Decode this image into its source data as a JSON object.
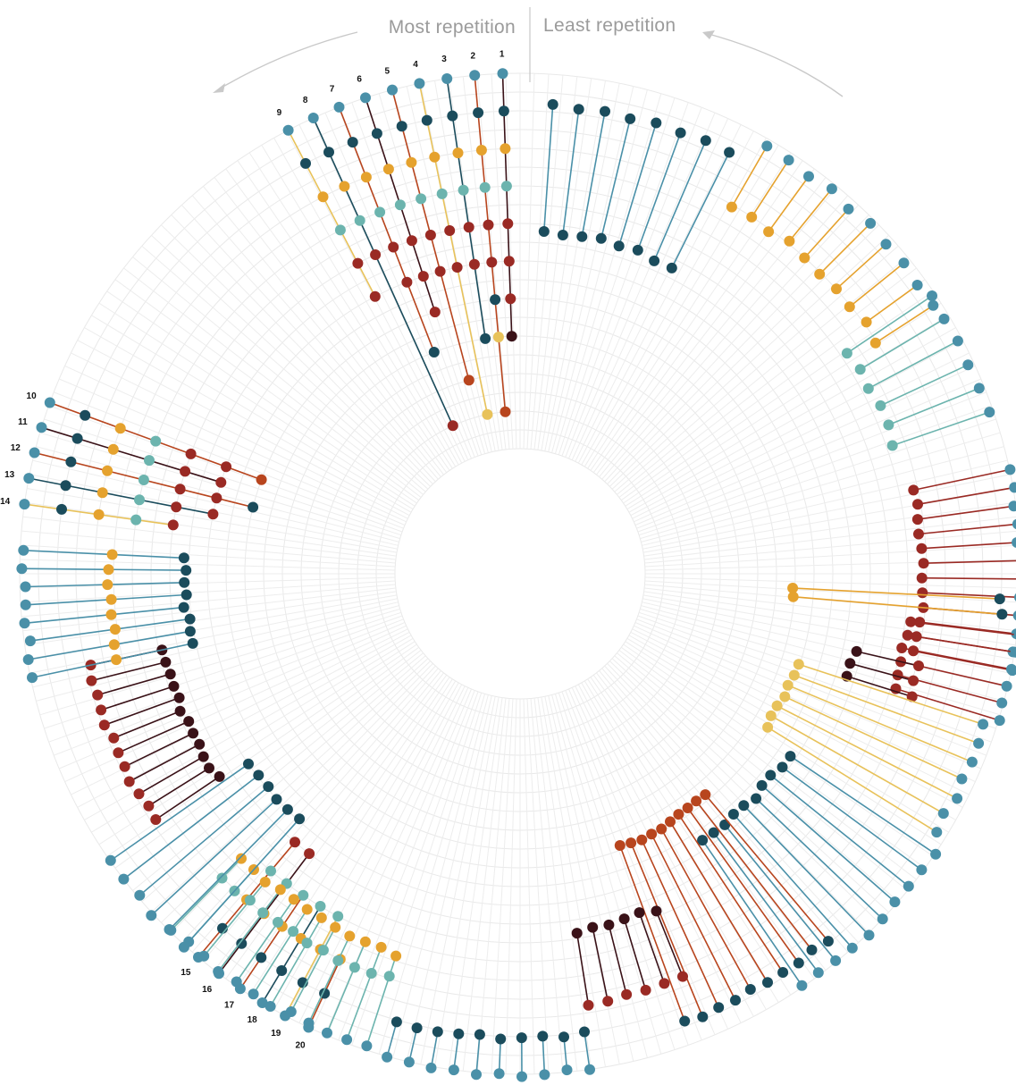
{
  "header": {
    "left_label": "Most repetition",
    "right_label": "Least repetition"
  },
  "colors": {
    "teal": "#4a90a8",
    "dark_teal": "#1b4c5c",
    "mint": "#6cb4ae",
    "orange": "#e5a22e",
    "yellow": "#e8c25a",
    "red": "#9a2a24",
    "burnt_orange": "#b8451e",
    "dark_red": "#3a1218",
    "grid": "#e9e9e9"
  },
  "chart_data": {
    "type": "radial-dot",
    "rank_labels": [
      "1",
      "2",
      "3",
      "4",
      "5",
      "6",
      "7",
      "8",
      "9",
      "10",
      "11",
      "12",
      "13",
      "14",
      "15",
      "16",
      "17",
      "18",
      "19",
      "20"
    ],
    "series": [
      {
        "rank": 1,
        "dots": [
          10,
          9,
          8,
          7,
          6,
          5,
          4,
          3
        ]
      },
      {
        "rank": 2,
        "dots": [
          10,
          9,
          8,
          7,
          6,
          5,
          4,
          3,
          1
        ]
      },
      {
        "rank": 3,
        "dots": [
          10,
          9,
          8,
          7,
          6,
          5,
          3
        ]
      },
      {
        "rank": 4,
        "dots": [
          10,
          9,
          8,
          7,
          6,
          5,
          1
        ]
      },
      {
        "rank": 5,
        "dots": [
          10,
          9,
          8,
          7,
          6,
          5,
          2
        ]
      },
      {
        "rank": 6,
        "dots": [
          10,
          9,
          8,
          7,
          6,
          5,
          4
        ]
      },
      {
        "rank": 7,
        "dots": [
          10,
          9,
          8,
          7,
          6,
          5,
          3
        ]
      },
      {
        "rank": 8,
        "dots": [
          10,
          9,
          8,
          7,
          6,
          1
        ]
      },
      {
        "rank": 9,
        "dots": [
          10,
          9,
          8,
          7,
          6,
          5
        ]
      },
      {
        "rank": 10,
        "dots": [
          10,
          9,
          8,
          7,
          6,
          5,
          4
        ]
      },
      {
        "rank": 11,
        "dots": [
          10,
          9,
          8,
          7,
          6,
          5
        ]
      },
      {
        "rank": 12,
        "dots": [
          10,
          9,
          8,
          7,
          6,
          5,
          4
        ]
      },
      {
        "rank": 13,
        "dots": [
          10,
          9,
          8,
          7,
          6,
          5
        ]
      },
      {
        "rank": 14,
        "dots": [
          10,
          9,
          8,
          7,
          6
        ]
      },
      {
        "rank": 15,
        "dots": [
          10,
          9,
          8,
          7,
          6
        ]
      },
      {
        "rank": 16,
        "dots": [
          10,
          9,
          8,
          7,
          6
        ]
      },
      {
        "rank": 17,
        "dots": [
          10,
          9,
          8,
          7
        ]
      },
      {
        "rank": 18,
        "dots": [
          10,
          9,
          8,
          7
        ]
      },
      {
        "rank": 19,
        "dots": [
          10,
          9,
          8,
          7
        ]
      },
      {
        "rank": 20,
        "dots": [
          10,
          9,
          8
        ]
      }
    ]
  }
}
